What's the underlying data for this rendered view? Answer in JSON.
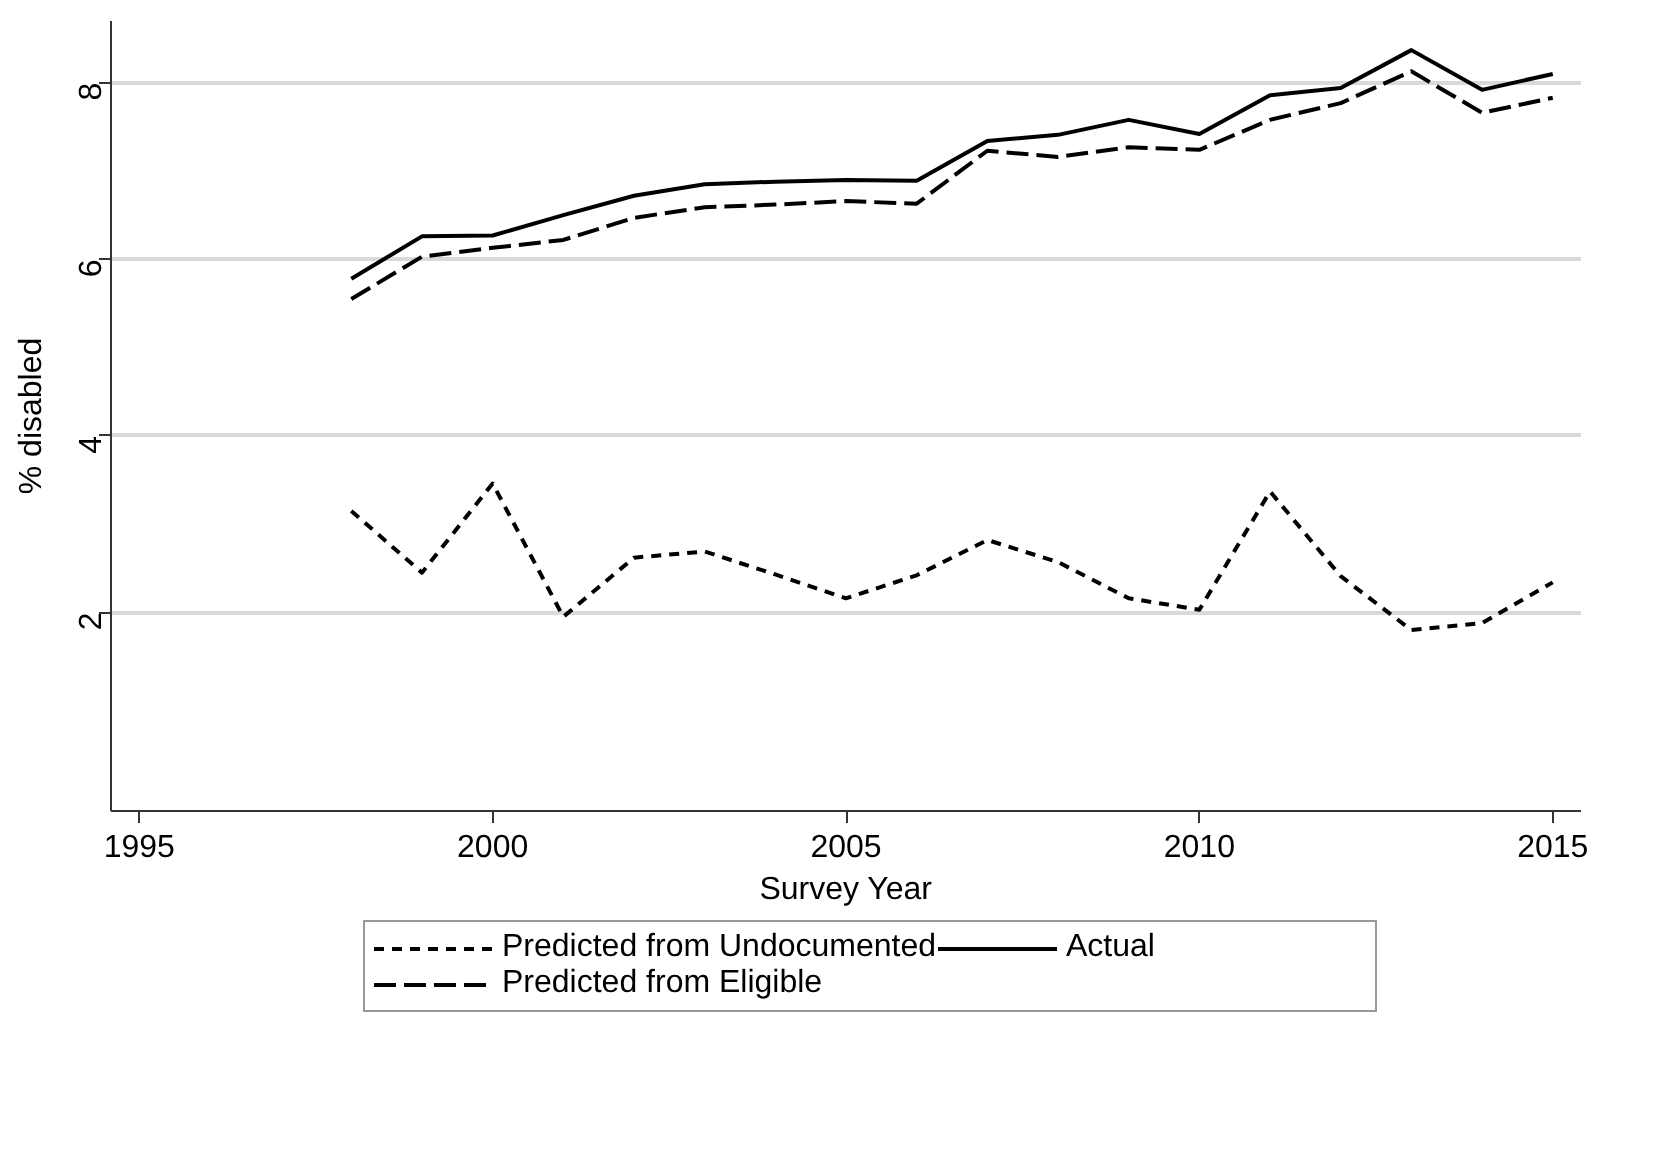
{
  "chart_data": {
    "type": "line",
    "xlabel": "Survey Year",
    "ylabel": "% disabled",
    "x": [
      1998,
      1999,
      2000,
      2001,
      2002,
      2003,
      2004,
      2005,
      2006,
      2007,
      2008,
      2009,
      2010,
      2011,
      2012,
      2013,
      2014,
      2015
    ],
    "series": [
      {
        "name": "Predicted from Undocumented",
        "color": "#000000",
        "line_style": "dotted",
        "values": [
          3.15,
          2.45,
          3.46,
          1.95,
          2.62,
          2.69,
          2.43,
          2.16,
          2.42,
          2.82,
          2.57,
          2.16,
          2.03,
          3.37,
          2.41,
          1.8,
          1.88,
          2.34
        ]
      },
      {
        "name": "Predicted from Eligible",
        "color": "#000000",
        "line_style": "dashed",
        "values": [
          5.55,
          6.03,
          6.13,
          6.22,
          6.47,
          6.59,
          6.62,
          6.66,
          6.63,
          7.23,
          7.16,
          7.27,
          7.24,
          7.58,
          7.77,
          8.13,
          7.66,
          7.83
        ]
      },
      {
        "name": "Actual",
        "color": "#000000",
        "line_style": "solid",
        "values": [
          5.78,
          6.26,
          6.27,
          6.5,
          6.72,
          6.85,
          6.88,
          6.9,
          6.89,
          7.34,
          7.41,
          7.58,
          7.42,
          7.86,
          7.94,
          8.37,
          7.92,
          8.1
        ]
      }
    ],
    "xlim": [
      1994.6,
      2015.4
    ],
    "ylim": [
      -0.25,
      8.7
    ],
    "xticks": [
      1995,
      2000,
      2005,
      2010,
      2015
    ],
    "yticks": [
      2,
      4,
      6,
      8
    ],
    "grid": "y",
    "legend": "bottom",
    "marker": "none"
  }
}
